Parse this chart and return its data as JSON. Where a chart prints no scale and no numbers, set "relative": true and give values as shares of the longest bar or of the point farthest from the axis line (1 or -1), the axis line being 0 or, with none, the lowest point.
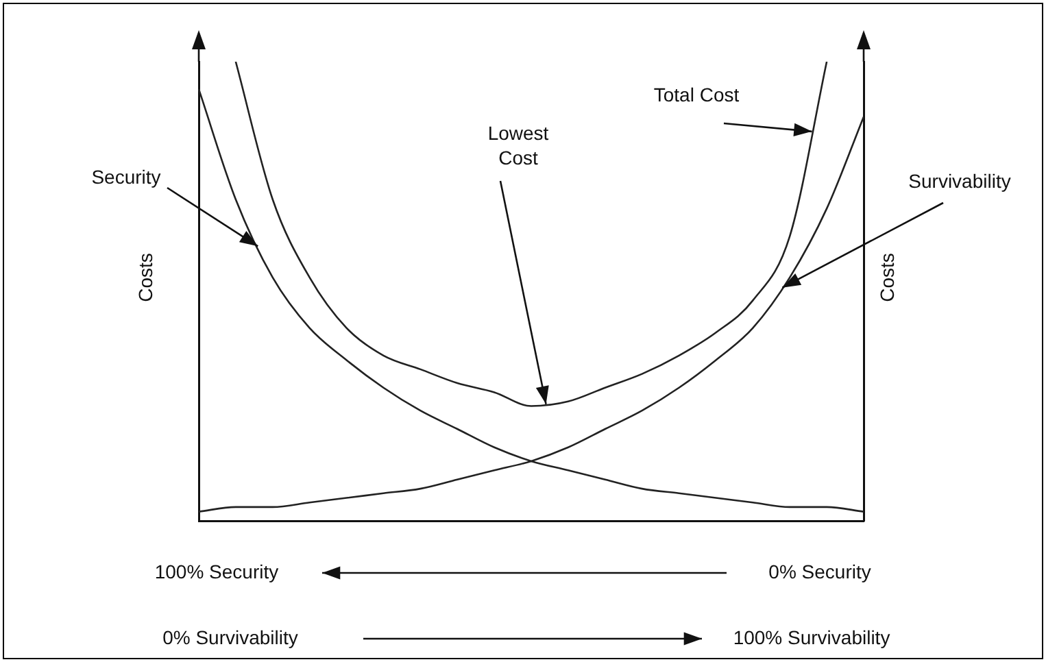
{
  "chart_data": {
    "type": "line",
    "relative": true,
    "ylabel": "Costs",
    "y2label": "Costs",
    "legend": false,
    "grid": false,
    "marker": "none",
    "categories": [
      null,
      null,
      null,
      null,
      null,
      null,
      null,
      null,
      null,
      null,
      null,
      null,
      null,
      null,
      null,
      null,
      null,
      null,
      null
    ],
    "series": [
      {
        "color": "#222222",
        "values": [
          0.94,
          0.7,
          0.53,
          0.42,
          0.35,
          0.29,
          0.24,
          0.2,
          0.16,
          0.13,
          0.11,
          0.09,
          0.07,
          0.06,
          0.05,
          0.04,
          0.03,
          0.03,
          0.02
        ]
      },
      {
        "color": "#222222",
        "values": [
          0.02,
          0.03,
          0.03,
          0.04,
          0.05,
          0.06,
          0.07,
          0.09,
          0.11,
          0.13,
          0.16,
          0.2,
          0.24,
          0.29,
          0.35,
          0.42,
          0.53,
          0.68,
          0.88
        ]
      },
      {
        "color": "#222222",
        "values": [
          null,
          1,
          0.7,
          0.53,
          0.42,
          0.36,
          0.33,
          0.3,
          0.28,
          0.25,
          0.26,
          0.29,
          0.32,
          0.36,
          0.41,
          0.48,
          0.62,
          1,
          null
        ]
      }
    ],
    "annotations": [
      "Security",
      "Lowest Cost",
      "Total Cost",
      "Survivability",
      "100% Security",
      "0% Security",
      "0% Survivability",
      "100% Survivability"
    ]
  }
}
